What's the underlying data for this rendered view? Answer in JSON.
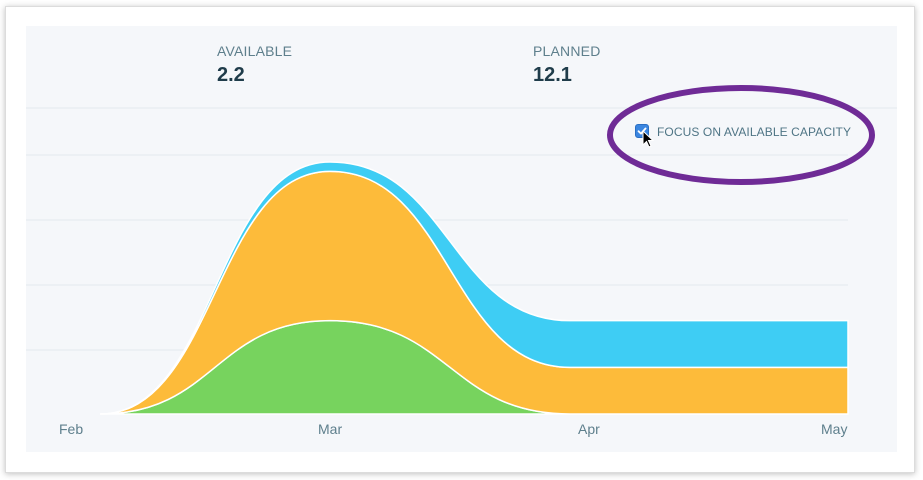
{
  "stats": {
    "available": {
      "label": "AVAILABLE",
      "value": "2.2"
    },
    "planned": {
      "label": "PLANNED",
      "value": "12.1"
    }
  },
  "focus_toggle": {
    "label": "FOCUS ON AVAILABLE CAPACITY",
    "checked": true
  },
  "colors": {
    "green": "#77d35e",
    "orange": "#fdbb3a",
    "blue": "#3ecdf4",
    "annotation": "#6f2b96",
    "checkbox": "#3b86e0"
  },
  "chart_data": {
    "type": "area",
    "stacked": true,
    "x": [
      "Feb",
      "Mar",
      "Apr",
      "May"
    ],
    "series": [
      {
        "color": "green",
        "values": [
          0,
          0.5,
          0.0,
          0.0
        ]
      },
      {
        "color": "orange",
        "values": [
          0,
          0.8,
          0.25,
          0.25
        ]
      },
      {
        "color": "blue",
        "values": [
          0,
          0.05,
          0.25,
          0.25
        ]
      }
    ],
    "ylim": [
      0,
      1.5
    ],
    "grid": true,
    "xlabel": "",
    "ylabel": ""
  }
}
